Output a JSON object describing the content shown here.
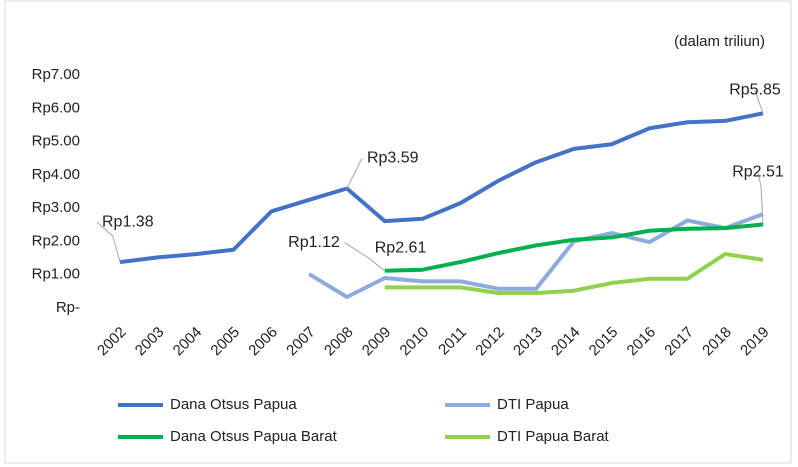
{
  "chart_data": {
    "type": "line",
    "subtitle": "(dalam triliun)",
    "categories": [
      "2002",
      "2003",
      "2004",
      "2005",
      "2006",
      "2007",
      "2008",
      "2009",
      "2010",
      "2011",
      "2012",
      "2013",
      "2014",
      "2015",
      "2016",
      "2017",
      "2018",
      "2019"
    ],
    "ylim": [
      0,
      7
    ],
    "yticks": [
      {
        "value": 0,
        "label": "Rp-"
      },
      {
        "value": 1,
        "label": "Rp1.00"
      },
      {
        "value": 2,
        "label": "Rp2.00"
      },
      {
        "value": 3,
        "label": "Rp3.00"
      },
      {
        "value": 4,
        "label": "Rp4.00"
      },
      {
        "value": 5,
        "label": "Rp5.00"
      },
      {
        "value": 6,
        "label": "Rp6.00"
      },
      {
        "value": 7,
        "label": "Rp7.00"
      }
    ],
    "grid": false,
    "series": [
      {
        "name": "Dana Otsus Papua",
        "color": "#4472c4",
        "values": [
          1.38,
          1.52,
          1.62,
          1.75,
          2.9,
          3.25,
          3.59,
          2.61,
          2.68,
          3.15,
          3.82,
          4.38,
          4.78,
          4.92,
          5.4,
          5.58,
          5.62,
          5.85
        ],
        "value_labels": [
          "Rp1.38",
          null,
          null,
          null,
          null,
          null,
          "Rp3.59",
          "Rp2.61",
          null,
          null,
          null,
          null,
          null,
          null,
          null,
          null,
          null,
          "Rp5.85"
        ]
      },
      {
        "name": "DTI Papua",
        "color": "#8faadc",
        "values": [
          null,
          null,
          null,
          null,
          null,
          1.02,
          0.33,
          0.9,
          0.8,
          0.8,
          0.58,
          0.58,
          2.0,
          2.25,
          1.98,
          2.63,
          2.4,
          2.82
        ]
      },
      {
        "name": "Dana Otsus Papua Barat",
        "color": "#00b050",
        "values": [
          null,
          null,
          null,
          null,
          null,
          null,
          null,
          1.12,
          1.15,
          1.38,
          1.65,
          1.88,
          2.05,
          2.12,
          2.32,
          2.38,
          2.4,
          2.51
        ],
        "value_labels": [
          null,
          null,
          null,
          null,
          null,
          null,
          null,
          "Rp1.12",
          null,
          null,
          null,
          null,
          null,
          null,
          null,
          null,
          null,
          "Rp2.51"
        ]
      },
      {
        "name": "DTI Papua Barat",
        "color": "#92d050",
        "values": [
          null,
          null,
          null,
          null,
          null,
          null,
          null,
          0.62,
          0.62,
          0.62,
          0.45,
          0.45,
          0.52,
          0.75,
          0.88,
          0.88,
          1.62,
          1.45
        ]
      }
    ],
    "legend": "bottom"
  }
}
